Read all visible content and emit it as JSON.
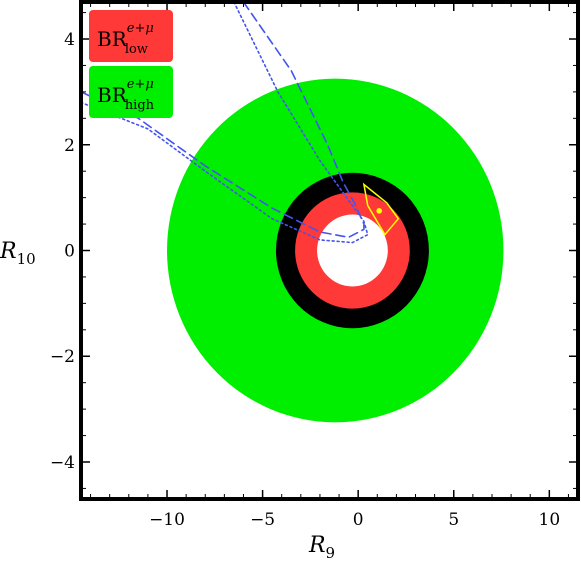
{
  "chart_data": {
    "type": "region",
    "xlabel": "R",
    "xlabel_sub": "9",
    "ylabel": "R",
    "ylabel_sub": "10",
    "xlim": [
      -14.5,
      11.5
    ],
    "ylim": [
      -4.7,
      4.7
    ],
    "xticks": [
      -10,
      -5,
      0,
      5,
      10
    ],
    "xtick_labels": [
      "−10",
      "−5",
      "0",
      "5",
      "10"
    ],
    "yticks": [
      -4,
      -2,
      0,
      2,
      4
    ],
    "ytick_labels": [
      "−4",
      "−2",
      "0",
      "2",
      "4"
    ],
    "grid": false,
    "legend_position": "top-left",
    "legend": [
      {
        "base": "BR",
        "sup": "e+μ",
        "sub": "low",
        "color": "#ff3838"
      },
      {
        "base": "BR",
        "sup": "e+μ",
        "sub": "high",
        "color": "#00ee00"
      }
    ],
    "regions": [
      {
        "name": "BR_high",
        "color": "#00ee00",
        "center": [
          -1.2,
          0.0
        ],
        "radius_x": 8.8,
        "radius_y": 3.25
      },
      {
        "name": "black_band",
        "color": "#000000",
        "center": [
          -0.3,
          0.0
        ],
        "radius_x": 4.0,
        "radius_y": 1.47
      },
      {
        "name": "BR_low",
        "color": "#ff3838",
        "center": [
          -0.3,
          0.0
        ],
        "radius_x": 3.0,
        "radius_y": 1.1
      },
      {
        "name": "excluded_center",
        "color": "#ffffff",
        "center": [
          -0.3,
          0.0
        ],
        "radius_x": 1.85,
        "radius_y": 0.68
      }
    ],
    "curves": [
      {
        "style": "dashed",
        "color": "#4455ee",
        "points": [
          [
            -6.0,
            4.7
          ],
          [
            -3.5,
            3.4
          ],
          [
            -1.6,
            2.0
          ],
          [
            -0.8,
            1.3
          ],
          [
            -0.2,
            0.9
          ],
          [
            0.3,
            0.5
          ],
          [
            0.3,
            0.4
          ],
          [
            -0.5,
            0.25
          ],
          [
            -2.0,
            0.35
          ],
          [
            -4.5,
            0.8
          ],
          [
            -8.0,
            1.6
          ],
          [
            -11.5,
            2.5
          ],
          [
            -14.5,
            3.0
          ]
        ]
      },
      {
        "style": "dotted",
        "color": "#4455ee",
        "points": [
          [
            -6.5,
            4.7
          ],
          [
            -4.2,
            3.0
          ],
          [
            -2.0,
            1.7
          ],
          [
            -0.6,
            1.0
          ],
          [
            0.3,
            0.55
          ],
          [
            0.5,
            0.3
          ],
          [
            -0.3,
            0.15
          ],
          [
            -2.0,
            0.2
          ],
          [
            -4.5,
            0.6
          ],
          [
            -8.0,
            1.5
          ],
          [
            -11.0,
            2.3
          ],
          [
            -14.5,
            2.8
          ]
        ]
      }
    ],
    "highlight": {
      "color": "#ffff00",
      "polygon": [
        [
          0.3,
          1.25
        ],
        [
          1.5,
          0.9
        ],
        [
          2.1,
          0.6
        ],
        [
          1.4,
          0.3
        ],
        [
          0.5,
          0.85
        ]
      ],
      "point": [
        1.1,
        0.75
      ]
    }
  }
}
